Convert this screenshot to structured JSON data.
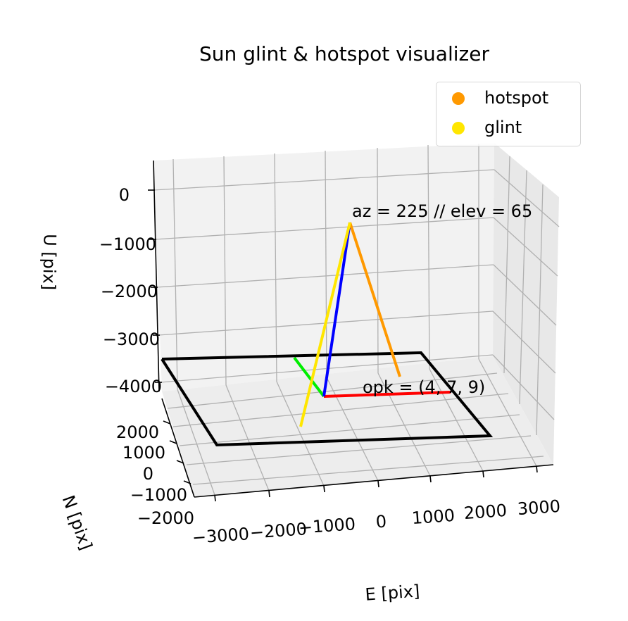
{
  "chart_data": {
    "type": "scatter",
    "title": "Sun glint & hotspot visualizer",
    "xlabel": "E [pix]",
    "ylabel": "N [pix]",
    "zlabel": "U [pix]",
    "x_ticks": [
      "−3000",
      "−2000",
      "−1000",
      "0",
      "1000",
      "2000",
      "3000"
    ],
    "y_ticks": [
      "−2000",
      "−1000",
      "0",
      "1000",
      "2000"
    ],
    "z_ticks": [
      "0",
      "−1000",
      "−2000",
      "−3000",
      "−4000"
    ],
    "view": {
      "azimuth": "225",
      "elevation": "65"
    },
    "annotations": [
      "az = 225 // elev = 65",
      "opk = (4, 7, 9)"
    ],
    "legend": {
      "position": "top-right",
      "entries": [
        {
          "name": "hotspot",
          "color": "#ff9900"
        },
        {
          "name": "glint",
          "color": "#ffe600"
        }
      ]
    },
    "series": [
      {
        "name": "hotspot",
        "color": "#ff9900"
      },
      {
        "name": "glint",
        "color": "#ffe600"
      }
    ],
    "image_footprint": {
      "color": "#000000"
    },
    "camera_axes": {
      "x_color": "#ff0000",
      "y_color": "#00ee00",
      "z_color": "#0000ff"
    },
    "grid": true
  }
}
